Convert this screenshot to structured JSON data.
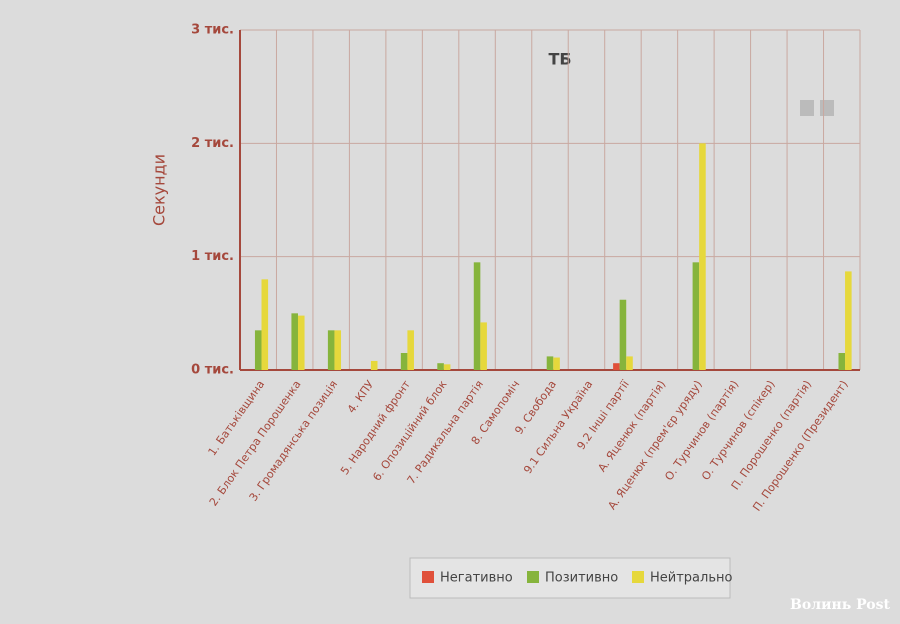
{
  "chart_data": {
    "type": "bar",
    "title": "ТБ",
    "y_label": "Секунди",
    "categories": [
      "1. Батьківщина",
      "2. Блок Петра Порошенка",
      "3. Громадянська позиція",
      "4. КПУ",
      "5. Народний фронт",
      "6. Опозиційний блок",
      "7. Радикальна партія",
      "8. Самопоміч",
      "9. Свобода",
      "9.1 Сильна Україна",
      "9.2 Інші партії",
      "А. Яценюк (партія)",
      "А. Яценюк (прем'єр уряду)",
      "О. Турчинов (партія)",
      "О. Турчинов (спікер)",
      "П. Порошенко (партія)",
      "П. Порошенко (Президент)"
    ],
    "series": [
      {
        "name": "Негативно",
        "color": "#e0503a",
        "values": [
          0,
          0,
          0,
          0,
          0,
          0,
          0,
          0,
          0,
          0,
          60,
          0,
          0,
          0,
          0,
          0,
          0
        ]
      },
      {
        "name": "Позитивно",
        "color": "#86b43c",
        "values": [
          350,
          500,
          350,
          0,
          150,
          60,
          950,
          0,
          120,
          0,
          620,
          0,
          950,
          0,
          0,
          0,
          150
        ]
      },
      {
        "name": "Нейтрально",
        "color": "#e6d83c",
        "values": [
          800,
          480,
          350,
          80,
          350,
          50,
          420,
          0,
          110,
          0,
          120,
          0,
          2000,
          0,
          0,
          0,
          870
        ]
      }
    ],
    "ylim": [
      0,
      3000
    ],
    "yticks": [
      {
        "value": 0,
        "label": "0 тис."
      },
      {
        "value": 1000,
        "label": "1 тис."
      },
      {
        "value": 2000,
        "label": "2 тис."
      },
      {
        "value": 3000,
        "label": "3 тис."
      }
    ],
    "grid": true,
    "legend": "bottom",
    "watermark": "Волинь Post"
  }
}
